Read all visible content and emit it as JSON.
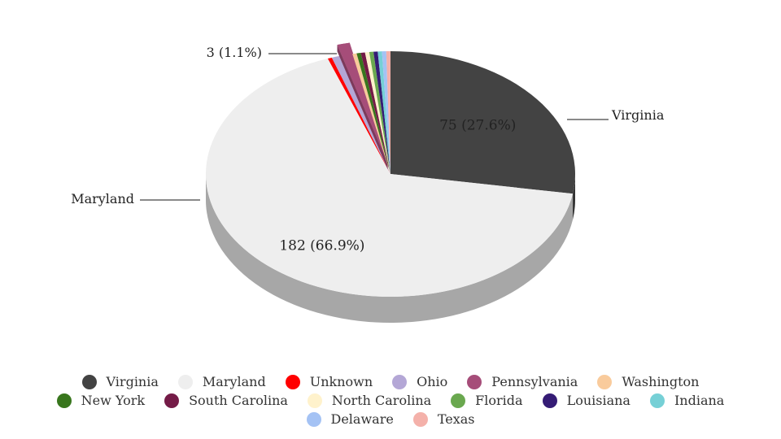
{
  "chart_data": {
    "type": "pie",
    "is_3d": true,
    "start": "top, clockwise",
    "slices": [
      {
        "label": "Virginia",
        "value": 75,
        "color": "#434343",
        "data_label": "75 (27.6%)",
        "outer_label": "Virginia"
      },
      {
        "label": "Maryland",
        "value": 182,
        "color": "#eeeeee",
        "data_label": "182 (66.9%)",
        "outer_label": "Maryland"
      },
      {
        "label": "Unknown",
        "value": 1,
        "color": "#ff0000"
      },
      {
        "label": "Ohio",
        "value": 2,
        "color": "#b4a7d6"
      },
      {
        "label": "Pennsylvania",
        "value": 3,
        "color": "#a64d79",
        "exploded": true,
        "outer_label": "3 (1.1%)"
      },
      {
        "label": "Washington",
        "value": 1,
        "color": "#f9cb9c"
      },
      {
        "label": "New York",
        "value": 1,
        "color": "#38761d"
      },
      {
        "label": "South Carolina",
        "value": 1,
        "color": "#741b47"
      },
      {
        "label": "North Carolina",
        "value": 1,
        "color": "#fff2cc"
      },
      {
        "label": "Florida",
        "value": 1,
        "color": "#6aa84f"
      },
      {
        "label": "Louisiana",
        "value": 1,
        "color": "#351c75"
      },
      {
        "label": "Indiana",
        "value": 1,
        "color": "#76d0d6"
      },
      {
        "label": "Delaware",
        "value": 1,
        "color": "#a4c2f4"
      },
      {
        "label": "Texas",
        "value": 1,
        "color": "#f4b1aa"
      }
    ],
    "legend_position": "bottom"
  }
}
